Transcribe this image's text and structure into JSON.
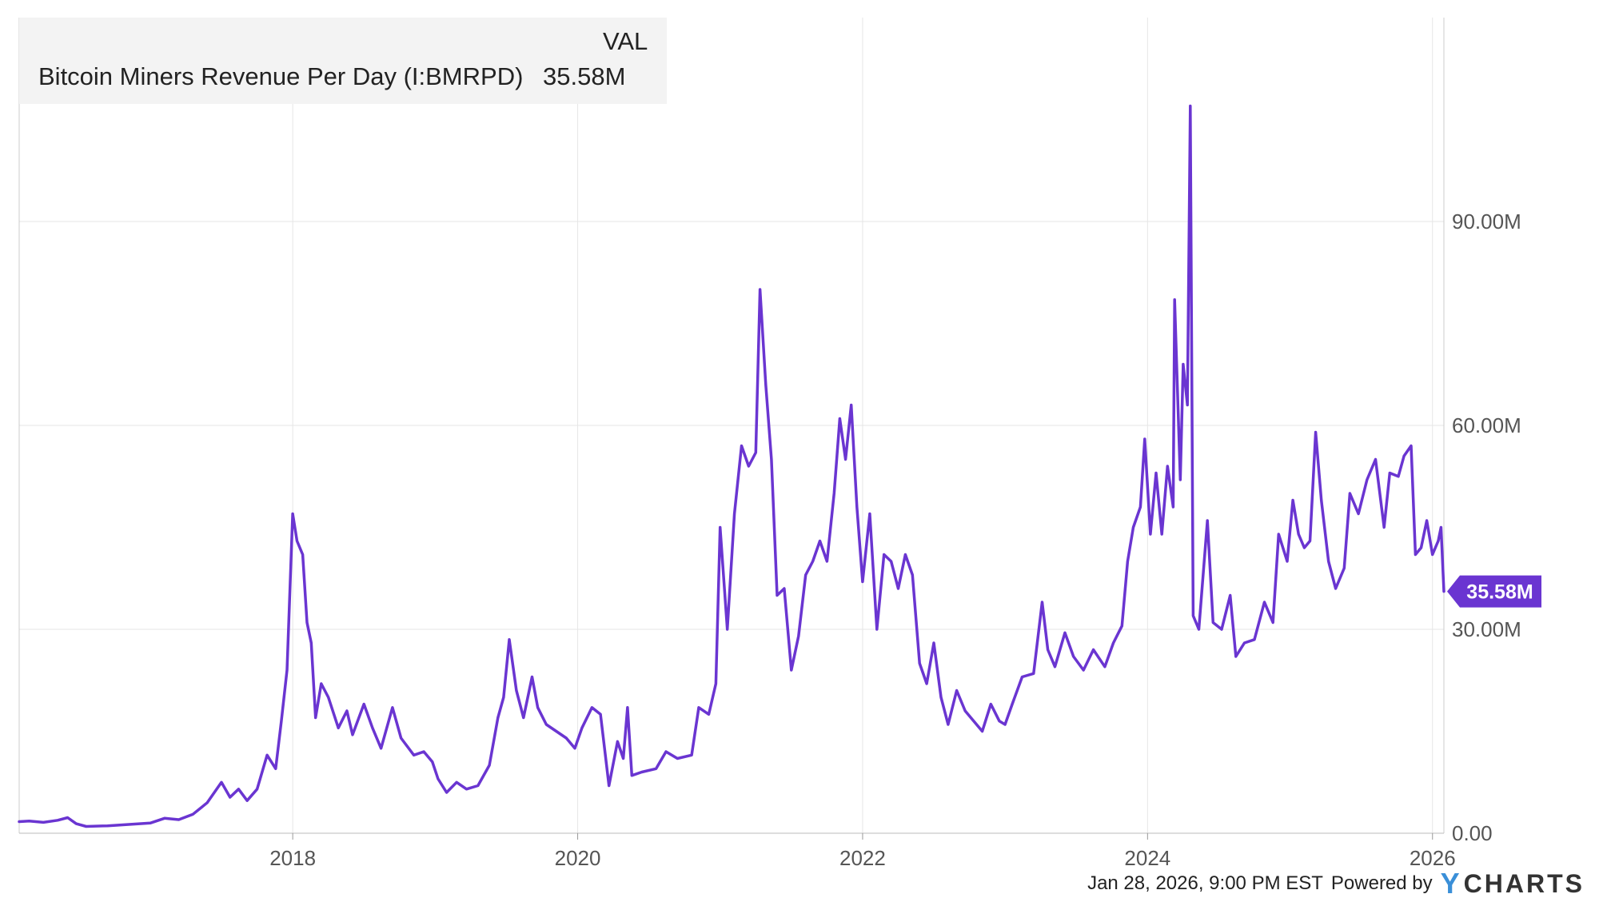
{
  "legend": {
    "header": "VAL",
    "series_name": "Bitcoin Miners Revenue Per Day (I:BMRPD)",
    "series_value": "35.58M"
  },
  "footer": {
    "timestamp": "Jan 28, 2026, 9:00 PM EST",
    "powered_by": "Powered by",
    "brand_y": "Y",
    "brand_rest": "CHARTS"
  },
  "colors": {
    "series": "#6a35d1",
    "grid": "#e6e6e6",
    "axis_text": "#555555",
    "last_value_label_bg": "#6a35d1",
    "brand_accent": "#3a8fd8"
  },
  "chart_data": {
    "type": "line",
    "ylim": [
      0,
      120
    ],
    "y_unit": "M",
    "y_ticks": [
      {
        "value": 0,
        "label": "0.00"
      },
      {
        "value": 30,
        "label": "30.00M"
      },
      {
        "value": 60,
        "label": "60.00M"
      },
      {
        "value": 90,
        "label": "90.00M"
      }
    ],
    "x_ticks": [
      {
        "value": 2018,
        "label": "2018"
      },
      {
        "value": 2020,
        "label": "2020"
      },
      {
        "value": 2022,
        "label": "2022"
      },
      {
        "value": 2024,
        "label": "2024"
      },
      {
        "value": 2026,
        "label": "2026"
      }
    ],
    "xlim": [
      2016.08,
      2026.08
    ],
    "grid": true,
    "last_value": {
      "value": 35.58,
      "label": "35.58M"
    },
    "series": [
      {
        "name": "Bitcoin Miners Revenue Per Day (I:BMRPD)",
        "color": "#6a35d1",
        "points": [
          [
            2016.08,
            1.7
          ],
          [
            2016.15,
            1.8
          ],
          [
            2016.25,
            1.6
          ],
          [
            2016.35,
            1.9
          ],
          [
            2016.42,
            2.3
          ],
          [
            2016.48,
            1.4
          ],
          [
            2016.55,
            1.0
          ],
          [
            2016.7,
            1.1
          ],
          [
            2016.85,
            1.3
          ],
          [
            2017.0,
            1.5
          ],
          [
            2017.1,
            2.2
          ],
          [
            2017.2,
            2.0
          ],
          [
            2017.3,
            2.8
          ],
          [
            2017.4,
            4.5
          ],
          [
            2017.5,
            7.5
          ],
          [
            2017.56,
            5.3
          ],
          [
            2017.62,
            6.5
          ],
          [
            2017.68,
            4.8
          ],
          [
            2017.75,
            6.5
          ],
          [
            2017.82,
            11.5
          ],
          [
            2017.88,
            9.5
          ],
          [
            2017.92,
            16.5
          ],
          [
            2017.96,
            24.0
          ],
          [
            2018.0,
            47.0
          ],
          [
            2018.03,
            43.0
          ],
          [
            2018.07,
            41.0
          ],
          [
            2018.1,
            31.0
          ],
          [
            2018.13,
            28.0
          ],
          [
            2018.16,
            17.0
          ],
          [
            2018.2,
            22.0
          ],
          [
            2018.25,
            20.0
          ],
          [
            2018.32,
            15.5
          ],
          [
            2018.38,
            18.0
          ],
          [
            2018.42,
            14.5
          ],
          [
            2018.5,
            19.0
          ],
          [
            2018.56,
            15.5
          ],
          [
            2018.62,
            12.5
          ],
          [
            2018.7,
            18.5
          ],
          [
            2018.76,
            14.0
          ],
          [
            2018.85,
            11.5
          ],
          [
            2018.92,
            12.0
          ],
          [
            2018.98,
            10.5
          ],
          [
            2019.02,
            8.0
          ],
          [
            2019.08,
            6.0
          ],
          [
            2019.15,
            7.5
          ],
          [
            2019.22,
            6.5
          ],
          [
            2019.3,
            7.0
          ],
          [
            2019.38,
            10.0
          ],
          [
            2019.44,
            17.0
          ],
          [
            2019.48,
            20.0
          ],
          [
            2019.52,
            28.5
          ],
          [
            2019.57,
            21.0
          ],
          [
            2019.62,
            17.0
          ],
          [
            2019.68,
            23.0
          ],
          [
            2019.72,
            18.5
          ],
          [
            2019.78,
            16.0
          ],
          [
            2019.85,
            15.0
          ],
          [
            2019.92,
            14.0
          ],
          [
            2019.98,
            12.5
          ],
          [
            2020.03,
            15.5
          ],
          [
            2020.1,
            18.5
          ],
          [
            2020.16,
            17.5
          ],
          [
            2020.22,
            7.0
          ],
          [
            2020.28,
            13.5
          ],
          [
            2020.32,
            11.0
          ],
          [
            2020.35,
            18.5
          ],
          [
            2020.38,
            8.5
          ],
          [
            2020.45,
            9.0
          ],
          [
            2020.55,
            9.5
          ],
          [
            2020.62,
            12.0
          ],
          [
            2020.7,
            11.0
          ],
          [
            2020.8,
            11.5
          ],
          [
            2020.85,
            18.5
          ],
          [
            2020.92,
            17.5
          ],
          [
            2020.97,
            22.0
          ],
          [
            2021.0,
            45.0
          ],
          [
            2021.05,
            30.0
          ],
          [
            2021.1,
            47.0
          ],
          [
            2021.15,
            57.0
          ],
          [
            2021.2,
            54.0
          ],
          [
            2021.25,
            56.0
          ],
          [
            2021.28,
            80.0
          ],
          [
            2021.32,
            66.0
          ],
          [
            2021.36,
            55.0
          ],
          [
            2021.4,
            35.0
          ],
          [
            2021.45,
            36.0
          ],
          [
            2021.5,
            24.0
          ],
          [
            2021.55,
            29.0
          ],
          [
            2021.6,
            38.0
          ],
          [
            2021.65,
            40.0
          ],
          [
            2021.7,
            43.0
          ],
          [
            2021.75,
            40.0
          ],
          [
            2021.8,
            50.0
          ],
          [
            2021.84,
            61.0
          ],
          [
            2021.88,
            55.0
          ],
          [
            2021.92,
            63.0
          ],
          [
            2021.96,
            48.0
          ],
          [
            2022.0,
            37.0
          ],
          [
            2022.05,
            47.0
          ],
          [
            2022.1,
            30.0
          ],
          [
            2022.15,
            41.0
          ],
          [
            2022.2,
            40.0
          ],
          [
            2022.25,
            36.0
          ],
          [
            2022.3,
            41.0
          ],
          [
            2022.35,
            38.0
          ],
          [
            2022.4,
            25.0
          ],
          [
            2022.45,
            22.0
          ],
          [
            2022.5,
            28.0
          ],
          [
            2022.55,
            20.0
          ],
          [
            2022.6,
            16.0
          ],
          [
            2022.66,
            21.0
          ],
          [
            2022.72,
            18.0
          ],
          [
            2022.78,
            16.5
          ],
          [
            2022.84,
            15.0
          ],
          [
            2022.9,
            19.0
          ],
          [
            2022.96,
            16.5
          ],
          [
            2023.0,
            16.0
          ],
          [
            2023.05,
            19.0
          ],
          [
            2023.12,
            23.0
          ],
          [
            2023.2,
            23.5
          ],
          [
            2023.26,
            34.0
          ],
          [
            2023.3,
            27.0
          ],
          [
            2023.35,
            24.5
          ],
          [
            2023.42,
            29.5
          ],
          [
            2023.48,
            26.0
          ],
          [
            2023.55,
            24.0
          ],
          [
            2023.62,
            27.0
          ],
          [
            2023.7,
            24.5
          ],
          [
            2023.76,
            28.0
          ],
          [
            2023.82,
            30.5
          ],
          [
            2023.86,
            40.0
          ],
          [
            2023.9,
            45.0
          ],
          [
            2023.95,
            48.0
          ],
          [
            2023.98,
            58.0
          ],
          [
            2024.02,
            44.0
          ],
          [
            2024.06,
            53.0
          ],
          [
            2024.1,
            44.0
          ],
          [
            2024.14,
            54.0
          ],
          [
            2024.18,
            48.0
          ],
          [
            2024.19,
            78.5
          ],
          [
            2024.23,
            52.0
          ],
          [
            2024.25,
            69.0
          ],
          [
            2024.28,
            63.0
          ],
          [
            2024.3,
            107.0
          ],
          [
            2024.32,
            32.0
          ],
          [
            2024.36,
            30.0
          ],
          [
            2024.42,
            46.0
          ],
          [
            2024.46,
            31.0
          ],
          [
            2024.52,
            30.0
          ],
          [
            2024.58,
            35.0
          ],
          [
            2024.62,
            26.0
          ],
          [
            2024.68,
            28.0
          ],
          [
            2024.75,
            28.5
          ],
          [
            2024.82,
            34.0
          ],
          [
            2024.88,
            31.0
          ],
          [
            2024.92,
            44.0
          ],
          [
            2024.98,
            40.0
          ],
          [
            2025.02,
            49.0
          ],
          [
            2025.06,
            44.0
          ],
          [
            2025.1,
            42.0
          ],
          [
            2025.14,
            43.0
          ],
          [
            2025.18,
            59.0
          ],
          [
            2025.22,
            49.0
          ],
          [
            2025.27,
            40.0
          ],
          [
            2025.32,
            36.0
          ],
          [
            2025.38,
            39.0
          ],
          [
            2025.42,
            50.0
          ],
          [
            2025.48,
            47.0
          ],
          [
            2025.54,
            52.0
          ],
          [
            2025.6,
            55.0
          ],
          [
            2025.66,
            45.0
          ],
          [
            2025.7,
            53.0
          ],
          [
            2025.76,
            52.5
          ],
          [
            2025.8,
            55.5
          ],
          [
            2025.85,
            57.0
          ],
          [
            2025.88,
            41.0
          ],
          [
            2025.92,
            42.0
          ],
          [
            2025.96,
            46.0
          ],
          [
            2026.0,
            41.0
          ],
          [
            2026.04,
            43.0
          ],
          [
            2026.06,
            45.0
          ],
          [
            2026.08,
            35.58
          ]
        ]
      }
    ]
  }
}
